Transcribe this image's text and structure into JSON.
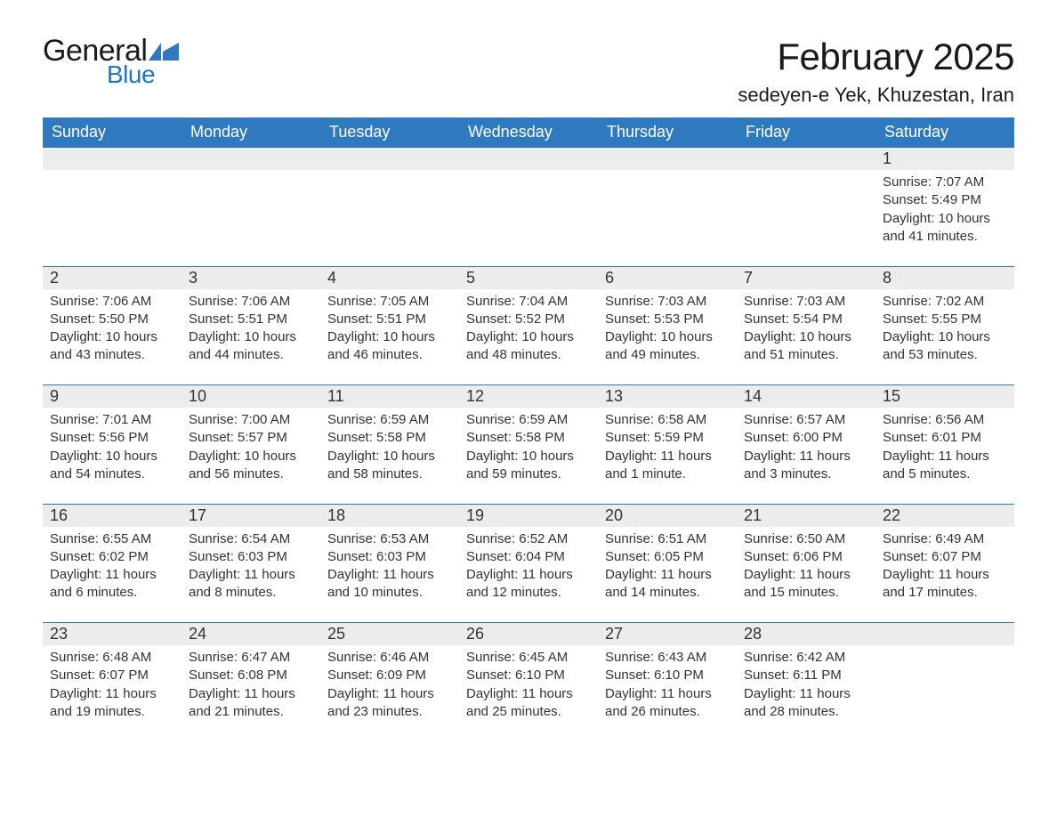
{
  "logo": {
    "text_general": "General",
    "text_blue": "Blue",
    "flag_color": "#2f7abf"
  },
  "header": {
    "month_title": "February 2025",
    "location": "sedeyen-e Yek, Khuzestan, Iran"
  },
  "colors": {
    "header_bg": "#2f7abf",
    "header_text": "#ffffff",
    "daynum_bg": "#ececec",
    "row_divider": "#2f7abf",
    "body_text": "#333333",
    "page_bg": "#ffffff"
  },
  "typography": {
    "month_title_fontsize": 42,
    "location_fontsize": 22,
    "dayheader_fontsize": 18,
    "daynum_fontsize": 18,
    "body_fontsize": 15
  },
  "weekdays": [
    "Sunday",
    "Monday",
    "Tuesday",
    "Wednesday",
    "Thursday",
    "Friday",
    "Saturday"
  ],
  "weeks": [
    [
      null,
      null,
      null,
      null,
      null,
      null,
      {
        "n": "1",
        "sunrise": "Sunrise: 7:07 AM",
        "sunset": "Sunset: 5:49 PM",
        "daylight": "Daylight: 10 hours and 41 minutes."
      }
    ],
    [
      {
        "n": "2",
        "sunrise": "Sunrise: 7:06 AM",
        "sunset": "Sunset: 5:50 PM",
        "daylight": "Daylight: 10 hours and 43 minutes."
      },
      {
        "n": "3",
        "sunrise": "Sunrise: 7:06 AM",
        "sunset": "Sunset: 5:51 PM",
        "daylight": "Daylight: 10 hours and 44 minutes."
      },
      {
        "n": "4",
        "sunrise": "Sunrise: 7:05 AM",
        "sunset": "Sunset: 5:51 PM",
        "daylight": "Daylight: 10 hours and 46 minutes."
      },
      {
        "n": "5",
        "sunrise": "Sunrise: 7:04 AM",
        "sunset": "Sunset: 5:52 PM",
        "daylight": "Daylight: 10 hours and 48 minutes."
      },
      {
        "n": "6",
        "sunrise": "Sunrise: 7:03 AM",
        "sunset": "Sunset: 5:53 PM",
        "daylight": "Daylight: 10 hours and 49 minutes."
      },
      {
        "n": "7",
        "sunrise": "Sunrise: 7:03 AM",
        "sunset": "Sunset: 5:54 PM",
        "daylight": "Daylight: 10 hours and 51 minutes."
      },
      {
        "n": "8",
        "sunrise": "Sunrise: 7:02 AM",
        "sunset": "Sunset: 5:55 PM",
        "daylight": "Daylight: 10 hours and 53 minutes."
      }
    ],
    [
      {
        "n": "9",
        "sunrise": "Sunrise: 7:01 AM",
        "sunset": "Sunset: 5:56 PM",
        "daylight": "Daylight: 10 hours and 54 minutes."
      },
      {
        "n": "10",
        "sunrise": "Sunrise: 7:00 AM",
        "sunset": "Sunset: 5:57 PM",
        "daylight": "Daylight: 10 hours and 56 minutes."
      },
      {
        "n": "11",
        "sunrise": "Sunrise: 6:59 AM",
        "sunset": "Sunset: 5:58 PM",
        "daylight": "Daylight: 10 hours and 58 minutes."
      },
      {
        "n": "12",
        "sunrise": "Sunrise: 6:59 AM",
        "sunset": "Sunset: 5:58 PM",
        "daylight": "Daylight: 10 hours and 59 minutes."
      },
      {
        "n": "13",
        "sunrise": "Sunrise: 6:58 AM",
        "sunset": "Sunset: 5:59 PM",
        "daylight": "Daylight: 11 hours and 1 minute."
      },
      {
        "n": "14",
        "sunrise": "Sunrise: 6:57 AM",
        "sunset": "Sunset: 6:00 PM",
        "daylight": "Daylight: 11 hours and 3 minutes."
      },
      {
        "n": "15",
        "sunrise": "Sunrise: 6:56 AM",
        "sunset": "Sunset: 6:01 PM",
        "daylight": "Daylight: 11 hours and 5 minutes."
      }
    ],
    [
      {
        "n": "16",
        "sunrise": "Sunrise: 6:55 AM",
        "sunset": "Sunset: 6:02 PM",
        "daylight": "Daylight: 11 hours and 6 minutes."
      },
      {
        "n": "17",
        "sunrise": "Sunrise: 6:54 AM",
        "sunset": "Sunset: 6:03 PM",
        "daylight": "Daylight: 11 hours and 8 minutes."
      },
      {
        "n": "18",
        "sunrise": "Sunrise: 6:53 AM",
        "sunset": "Sunset: 6:03 PM",
        "daylight": "Daylight: 11 hours and 10 minutes."
      },
      {
        "n": "19",
        "sunrise": "Sunrise: 6:52 AM",
        "sunset": "Sunset: 6:04 PM",
        "daylight": "Daylight: 11 hours and 12 minutes."
      },
      {
        "n": "20",
        "sunrise": "Sunrise: 6:51 AM",
        "sunset": "Sunset: 6:05 PM",
        "daylight": "Daylight: 11 hours and 14 minutes."
      },
      {
        "n": "21",
        "sunrise": "Sunrise: 6:50 AM",
        "sunset": "Sunset: 6:06 PM",
        "daylight": "Daylight: 11 hours and 15 minutes."
      },
      {
        "n": "22",
        "sunrise": "Sunrise: 6:49 AM",
        "sunset": "Sunset: 6:07 PM",
        "daylight": "Daylight: 11 hours and 17 minutes."
      }
    ],
    [
      {
        "n": "23",
        "sunrise": "Sunrise: 6:48 AM",
        "sunset": "Sunset: 6:07 PM",
        "daylight": "Daylight: 11 hours and 19 minutes."
      },
      {
        "n": "24",
        "sunrise": "Sunrise: 6:47 AM",
        "sunset": "Sunset: 6:08 PM",
        "daylight": "Daylight: 11 hours and 21 minutes."
      },
      {
        "n": "25",
        "sunrise": "Sunrise: 6:46 AM",
        "sunset": "Sunset: 6:09 PM",
        "daylight": "Daylight: 11 hours and 23 minutes."
      },
      {
        "n": "26",
        "sunrise": "Sunrise: 6:45 AM",
        "sunset": "Sunset: 6:10 PM",
        "daylight": "Daylight: 11 hours and 25 minutes."
      },
      {
        "n": "27",
        "sunrise": "Sunrise: 6:43 AM",
        "sunset": "Sunset: 6:10 PM",
        "daylight": "Daylight: 11 hours and 26 minutes."
      },
      {
        "n": "28",
        "sunrise": "Sunrise: 6:42 AM",
        "sunset": "Sunset: 6:11 PM",
        "daylight": "Daylight: 11 hours and 28 minutes."
      },
      null
    ]
  ]
}
